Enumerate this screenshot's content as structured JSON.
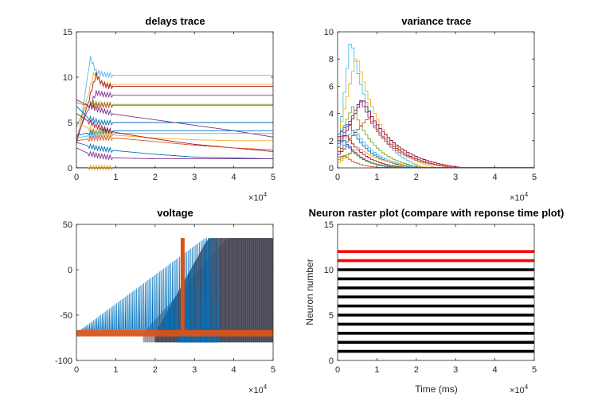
{
  "chart_data": [
    {
      "type": "line",
      "panel": "top-left",
      "title": "delays trace",
      "xlabel": "",
      "ylabel": "",
      "xlim": [
        0,
        50000
      ],
      "ylim": [
        0,
        15
      ],
      "xticks": [
        "0",
        "1",
        "2",
        "3",
        "4",
        "5"
      ],
      "yticks": [
        "0",
        "5",
        "10",
        "15"
      ],
      "x_exponent": "10",
      "x_exponent_power": "4",
      "grid": false,
      "series": [
        {
          "color": "#4DBEEE",
          "x": [
            0,
            1500,
            3500,
            5000,
            7000,
            10000,
            20000,
            30000,
            40000,
            50000
          ],
          "y": [
            2.5,
            6.0,
            12.2,
            10.6,
            10.3,
            10.2,
            10.2,
            10.2,
            10.2,
            10.2
          ]
        },
        {
          "color": "#EDB120",
          "x": [
            0,
            2000,
            4500,
            6000,
            8000,
            10000,
            20000,
            30000,
            40000,
            50000
          ],
          "y": [
            3.0,
            6.5,
            10.6,
            9.4,
            9.2,
            9.2,
            9.2,
            9.2,
            9.2,
            9.2
          ]
        },
        {
          "color": "#A2142F",
          "x": [
            0,
            2500,
            5000,
            6500,
            8000,
            10000,
            20000,
            30000,
            40000,
            50000
          ],
          "y": [
            2.8,
            6.5,
            10.3,
            9.3,
            9.0,
            9.0,
            9.0,
            9.0,
            9.0,
            9.0
          ]
        },
        {
          "color": "#7E2F8E",
          "x": [
            0,
            2500,
            5000,
            7000,
            10000,
            20000,
            30000,
            40000,
            50000
          ],
          "y": [
            3.2,
            6.0,
            8.3,
            8.1,
            8.0,
            8.0,
            8.0,
            8.0,
            8.0
          ]
        },
        {
          "color": "#77AC30",
          "x": [
            0,
            2000,
            4000,
            6000,
            10000,
            20000,
            30000,
            40000,
            50000
          ],
          "y": [
            4.5,
            6.5,
            7.2,
            7.0,
            7.0,
            7.0,
            7.0,
            7.0,
            7.0
          ]
        },
        {
          "color": "#D95319",
          "x": [
            0,
            1500,
            3000,
            5000,
            10000,
            20000,
            30000,
            40000,
            50000
          ],
          "y": [
            7.2,
            7.0,
            6.9,
            6.9,
            6.9,
            6.9,
            6.9,
            6.9,
            6.9
          ]
        },
        {
          "color": "#0072BD",
          "x": [
            0,
            3000,
            6000,
            10000,
            20000,
            30000,
            40000,
            50000
          ],
          "y": [
            6.8,
            5.5,
            5.0,
            5.0,
            5.0,
            5.0,
            5.0,
            5.0
          ]
        },
        {
          "color": "#7E2F8E",
          "x": [
            0,
            5000,
            10000,
            20000,
            30000,
            40000,
            50000
          ],
          "y": [
            7.5,
            6.5,
            5.9,
            5.3,
            4.7,
            4.1,
            3.4
          ]
        },
        {
          "color": "#0072BD",
          "x": [
            0,
            5000,
            10000,
            20000,
            30000,
            40000,
            50000
          ],
          "y": [
            3.6,
            4.0,
            4.1,
            4.1,
            4.1,
            4.1,
            4.1
          ]
        },
        {
          "color": "#4DBEEE",
          "x": [
            0,
            5000,
            10000,
            20000,
            30000,
            40000,
            50000
          ],
          "y": [
            3.3,
            3.7,
            3.8,
            3.8,
            3.8,
            3.8,
            3.8
          ]
        },
        {
          "color": "#EDB120",
          "x": [
            0,
            5000,
            10000,
            20000,
            30000,
            40000,
            50000
          ],
          "y": [
            5.0,
            4.0,
            3.6,
            3.3,
            3.1,
            3.0,
            3.0
          ]
        },
        {
          "color": "#A2142F",
          "x": [
            0,
            5000,
            10000,
            20000,
            30000,
            40000,
            50000
          ],
          "y": [
            6.0,
            4.6,
            3.9,
            3.2,
            2.6,
            2.2,
            1.8
          ]
        },
        {
          "color": "#D95319",
          "x": [
            0,
            5000,
            10000,
            20000,
            30000,
            40000,
            50000
          ],
          "y": [
            3.0,
            3.3,
            3.3,
            2.9,
            2.5,
            2.2,
            2.0
          ]
        },
        {
          "color": "#0072BD",
          "x": [
            0,
            5000,
            10000,
            20000,
            30000,
            40000,
            50000
          ],
          "y": [
            2.8,
            2.2,
            1.9,
            1.5,
            1.2,
            1.1,
            1.0
          ]
        },
        {
          "color": "#7E2F8E",
          "x": [
            0,
            3000,
            6000,
            10000,
            20000,
            30000,
            40000,
            50000
          ],
          "y": [
            2.2,
            1.6,
            1.3,
            1.1,
            1.0,
            1.0,
            1.0,
            1.0
          ]
        },
        {
          "color": "#EDB120",
          "x": [
            0,
            10000,
            20000,
            30000,
            40000,
            50000
          ],
          "y": [
            0.05,
            0.05,
            0.05,
            0.05,
            0.05,
            0.05
          ]
        }
      ]
    },
    {
      "type": "line",
      "panel": "top-right",
      "title": "variance trace",
      "xlabel": "",
      "ylabel": "",
      "xlim": [
        0,
        50000
      ],
      "ylim": [
        0,
        10
      ],
      "xticks": [
        "0",
        "1",
        "2",
        "3",
        "4",
        "5"
      ],
      "yticks": [
        "0",
        "2",
        "4",
        "6",
        "8",
        "10"
      ],
      "x_exponent": "10",
      "x_exponent_power": "4",
      "grid": false,
      "series": [
        {
          "color": "#4DBEEE",
          "peak_x": 3000,
          "peak_y": 9.6,
          "start_y": 2.0,
          "tail_x": 22000
        },
        {
          "color": "#EDB120",
          "peak_x": 4500,
          "peak_y": 8.4,
          "start_y": 2.5,
          "tail_x": 25000
        },
        {
          "color": "#A2142F",
          "peak_x": 6000,
          "peak_y": 5.1,
          "start_y": 1.5,
          "tail_x": 32000
        },
        {
          "color": "#7E2F8E",
          "peak_x": 5500,
          "peak_y": 5.0,
          "start_y": 1.8,
          "tail_x": 30000
        },
        {
          "color": "#77AC30",
          "peak_x": 3500,
          "peak_y": 4.5,
          "start_y": 2.2,
          "tail_x": 22000
        },
        {
          "color": "#D95319",
          "peak_x": 7500,
          "peak_y": 3.7,
          "start_y": 1.2,
          "tail_x": 30000
        },
        {
          "color": "#0072BD",
          "peak_x": 2500,
          "peak_y": 3.3,
          "start_y": 2.5,
          "tail_x": 20000
        },
        {
          "color": "#4DBEEE",
          "peak_x": 4000,
          "peak_y": 2.9,
          "start_y": 1.5,
          "tail_x": 22000
        },
        {
          "color": "#A2142F",
          "peak_x": 2000,
          "peak_y": 2.4,
          "start_y": 2.3,
          "tail_x": 18000
        },
        {
          "color": "#0072BD",
          "peak_x": 1500,
          "peak_y": 2.0,
          "start_y": 2.0,
          "tail_x": 15000
        },
        {
          "color": "#7E2F8E",
          "peak_x": 2500,
          "peak_y": 1.7,
          "start_y": 1.0,
          "tail_x": 16000
        },
        {
          "color": "#EDB120",
          "peak_x": 5000,
          "peak_y": 1.5,
          "start_y": 0.4,
          "tail_x": 26000
        },
        {
          "color": "#77AC30",
          "peak_x": 3500,
          "peak_y": 1.2,
          "start_y": 0.6,
          "tail_x": 18000
        },
        {
          "color": "#D95319",
          "peak_x": 1500,
          "peak_y": 0.9,
          "start_y": 0.8,
          "tail_x": 12000
        }
      ]
    },
    {
      "type": "line",
      "panel": "bottom-left",
      "title": "voltage",
      "xlabel": "",
      "ylabel": "",
      "xlim": [
        0,
        50000
      ],
      "ylim": [
        -100,
        50
      ],
      "xticks": [
        "0",
        "1",
        "2",
        "3",
        "4",
        "5"
      ],
      "yticks": [
        "-100",
        "-50",
        "0",
        "50"
      ],
      "x_exponent": "10",
      "x_exponent_power": "4",
      "grid": false,
      "spike_peak": 35,
      "rest_level": -70,
      "reset_level": -80,
      "series": [
        {
          "color": "#0072BD",
          "name_hidden": true,
          "spike_start_x": 1500,
          "spike_end_x": 36000
        },
        {
          "color": "#4A4A5A",
          "name_hidden": true,
          "spike_start_x": 20000,
          "spike_end_x": 50000
        },
        {
          "color": "#A89A9E",
          "name_hidden": true,
          "spike_start_x": 17000,
          "spike_end_x": 50000
        },
        {
          "color": "#D95319",
          "name_hidden": true,
          "spike_start_x": 26500,
          "spike_end_x": 27500
        }
      ]
    },
    {
      "type": "scatter",
      "panel": "bottom-right",
      "title": "Neuron raster plot (compare with reponse time plot)",
      "xlabel": "Time (ms)",
      "ylabel": "Neuron number",
      "xlim": [
        0,
        50000
      ],
      "ylim": [
        0,
        15
      ],
      "xticks": [
        "0",
        "1",
        "2",
        "3",
        "4",
        "5"
      ],
      "yticks": [
        "0",
        "5",
        "10",
        "15"
      ],
      "x_exponent": "10",
      "x_exponent_power": "4",
      "grid": false,
      "rows": [
        {
          "neuron": 1,
          "color": "#000000"
        },
        {
          "neuron": 2,
          "color": "#000000"
        },
        {
          "neuron": 3,
          "color": "#000000"
        },
        {
          "neuron": 4,
          "color": "#000000"
        },
        {
          "neuron": 5,
          "color": "#000000"
        },
        {
          "neuron": 6,
          "color": "#000000"
        },
        {
          "neuron": 7,
          "color": "#000000"
        },
        {
          "neuron": 8,
          "color": "#000000"
        },
        {
          "neuron": 9,
          "color": "#000000"
        },
        {
          "neuron": 10,
          "color": "#000000"
        },
        {
          "neuron": 11,
          "color": "#FF0000"
        },
        {
          "neuron": 12,
          "color": "#FF0000"
        }
      ]
    }
  ]
}
